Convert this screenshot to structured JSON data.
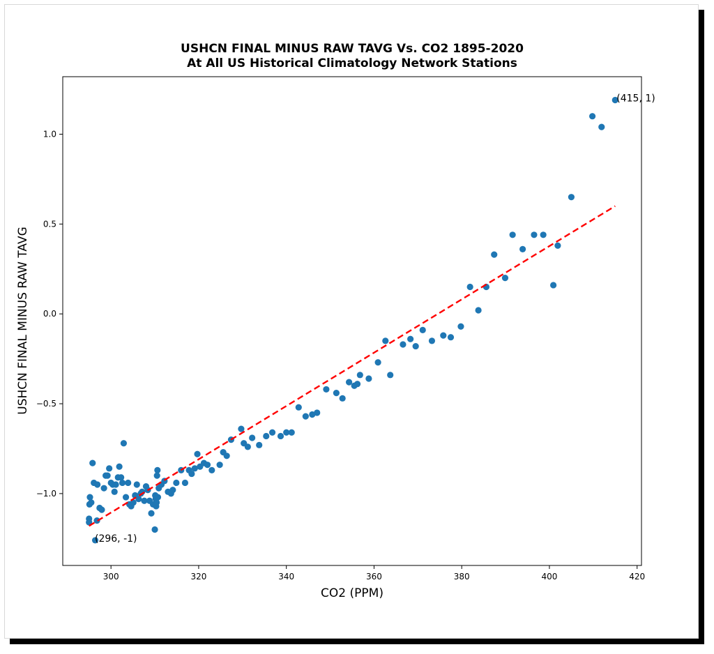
{
  "chart_data": {
    "type": "scatter",
    "title": "USHCN FINAL MINUS RAW TAVG Vs. CO2 1895-2020",
    "subtitle": "At All US Historical Climatology Network Stations",
    "xlabel": "CO2 (PPM)",
    "ylabel": "USHCN FINAL MINUS RAW TAVG",
    "xlim": [
      289,
      421
    ],
    "ylim": [
      -1.4,
      1.32
    ],
    "xticks": [
      300,
      320,
      340,
      360,
      380,
      400,
      420
    ],
    "yticks": [
      -1.0,
      -0.5,
      0.0,
      0.5,
      1.0
    ],
    "grid": false,
    "point_color": "#1f77b4",
    "trend_color": "#ff0000",
    "trend_line": {
      "x": [
        295,
        415
      ],
      "y": [
        -1.18,
        0.6
      ]
    },
    "annotations": [
      {
        "text": "(415, 1)",
        "x": 415,
        "y": 1.19
      },
      {
        "text": "(296, -1)",
        "x": 296,
        "y": -1.26
      }
    ],
    "points": [
      [
        295,
        -1.14
      ],
      [
        295,
        -1.16
      ],
      [
        295.1,
        -1.06
      ],
      [
        295.2,
        -1.02
      ],
      [
        295.5,
        -1.05
      ],
      [
        295.8,
        -0.83
      ],
      [
        296.1,
        -0.94
      ],
      [
        296.4,
        -1.26
      ],
      [
        296.8,
        -1.15
      ],
      [
        296.9,
        -0.95
      ],
      [
        297.4,
        -1.08
      ],
      [
        297.9,
        -1.09
      ],
      [
        298.4,
        -0.97
      ],
      [
        298.8,
        -0.9
      ],
      [
        299.2,
        -0.9
      ],
      [
        299.6,
        -0.86
      ],
      [
        300,
        -0.94
      ],
      [
        300.4,
        -0.95
      ],
      [
        300.8,
        -0.99
      ],
      [
        301.1,
        -0.95
      ],
      [
        301.6,
        -0.91
      ],
      [
        301.9,
        -0.85
      ],
      [
        302.3,
        -0.91
      ],
      [
        302.6,
        -0.94
      ],
      [
        302.9,
        -0.72
      ],
      [
        303.4,
        -1.02
      ],
      [
        303.9,
        -0.94
      ],
      [
        304.2,
        -1.06
      ],
      [
        304.6,
        -1.07
      ],
      [
        305.1,
        -1.05
      ],
      [
        305.5,
        -1.01
      ],
      [
        305.9,
        -0.95
      ],
      [
        306.3,
        -1.03
      ],
      [
        306.8,
        -1.0
      ],
      [
        307.1,
        -0.99
      ],
      [
        307.6,
        -1.04
      ],
      [
        308,
        -0.96
      ],
      [
        308.4,
        -0.98
      ],
      [
        308.8,
        -1.04
      ],
      [
        309.2,
        -1.11
      ],
      [
        309.6,
        -1.06
      ],
      [
        310,
        -1.2
      ],
      [
        310.1,
        -1.01
      ],
      [
        310.2,
        -1.03
      ],
      [
        310.3,
        -1.07
      ],
      [
        310.4,
        -1.05
      ],
      [
        310.5,
        -0.9
      ],
      [
        310.6,
        -0.87
      ],
      [
        310.7,
        -1.02
      ],
      [
        310.9,
        -0.97
      ],
      [
        311.5,
        -0.95
      ],
      [
        312.2,
        -0.93
      ],
      [
        313,
        -0.99
      ],
      [
        313.7,
        -1.0
      ],
      [
        314.1,
        -0.98
      ],
      [
        314.9,
        -0.94
      ],
      [
        316,
        -0.87
      ],
      [
        316.9,
        -0.94
      ],
      [
        317.8,
        -0.87
      ],
      [
        318.4,
        -0.89
      ],
      [
        319.1,
        -0.86
      ],
      [
        319.7,
        -0.78
      ],
      [
        320.3,
        -0.85
      ],
      [
        321.2,
        -0.83
      ],
      [
        322,
        -0.84
      ],
      [
        323,
        -0.87
      ],
      [
        324.8,
        -0.84
      ],
      [
        325.6,
        -0.77
      ],
      [
        326.4,
        -0.79
      ],
      [
        327.4,
        -0.7
      ],
      [
        329.7,
        -0.64
      ],
      [
        330.3,
        -0.72
      ],
      [
        331.2,
        -0.74
      ],
      [
        332.2,
        -0.69
      ],
      [
        333.8,
        -0.73
      ],
      [
        335.4,
        -0.68
      ],
      [
        336.8,
        -0.66
      ],
      [
        338.7,
        -0.68
      ],
      [
        340,
        -0.66
      ],
      [
        341.2,
        -0.66
      ],
      [
        342.8,
        -0.52
      ],
      [
        344.4,
        -0.57
      ],
      [
        345.9,
        -0.56
      ],
      [
        347,
        -0.55
      ],
      [
        349.1,
        -0.42
      ],
      [
        351.4,
        -0.44
      ],
      [
        352.8,
        -0.47
      ],
      [
        354.3,
        -0.38
      ],
      [
        355.5,
        -0.4
      ],
      [
        356.2,
        -0.39
      ],
      [
        356.8,
        -0.34
      ],
      [
        358.8,
        -0.36
      ],
      [
        360.9,
        -0.27
      ],
      [
        362.6,
        -0.15
      ],
      [
        363.7,
        -0.34
      ],
      [
        366.6,
        -0.17
      ],
      [
        368.3,
        -0.14
      ],
      [
        369.5,
        -0.18
      ],
      [
        371.1,
        -0.09
      ],
      [
        373.2,
        -0.15
      ],
      [
        375.8,
        -0.12
      ],
      [
        377.5,
        -0.13
      ],
      [
        379.8,
        -0.07
      ],
      [
        381.9,
        0.15
      ],
      [
        383.8,
        0.02
      ],
      [
        385.6,
        0.15
      ],
      [
        387.4,
        0.33
      ],
      [
        389.9,
        0.2
      ],
      [
        391.6,
        0.44
      ],
      [
        393.9,
        0.36
      ],
      [
        396.5,
        0.44
      ],
      [
        398.6,
        0.44
      ],
      [
        400.9,
        0.16
      ],
      [
        401.9,
        0.38
      ],
      [
        405,
        0.65
      ],
      [
        409.8,
        1.1
      ],
      [
        411.9,
        1.04
      ],
      [
        415,
        1.19
      ]
    ]
  }
}
